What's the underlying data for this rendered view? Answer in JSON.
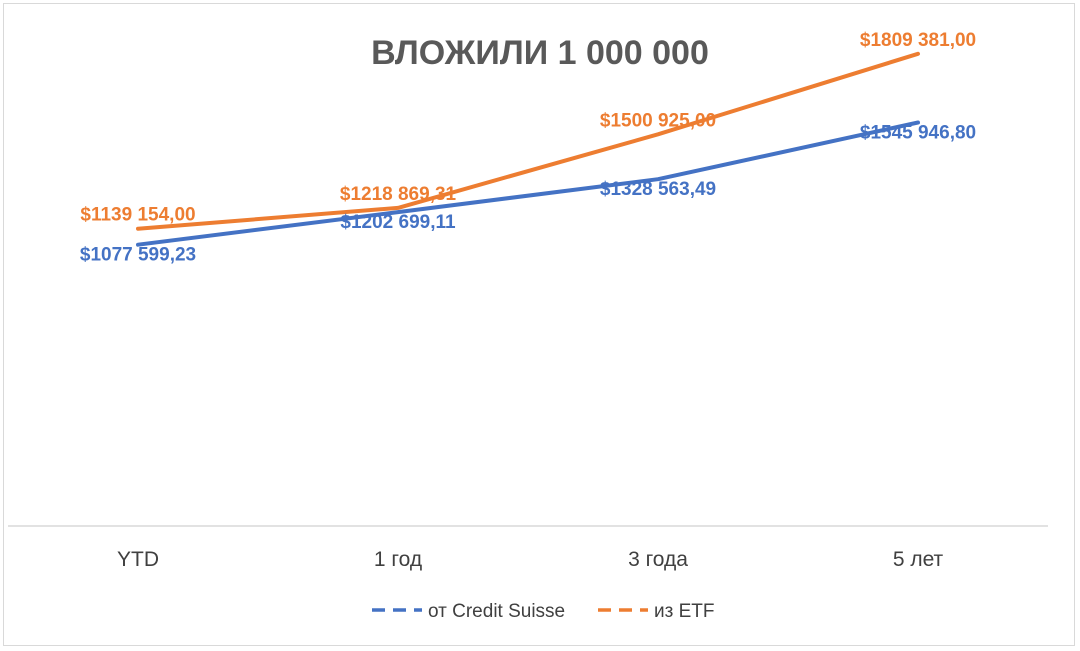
{
  "chart_data": {
    "type": "line",
    "title": "ВЛОЖИЛИ 1 000 000",
    "xlabel": "",
    "ylabel": "",
    "categories": [
      "YTD",
      "1 год",
      "3 года",
      "5 лет"
    ],
    "ylim": [
      0,
      2000000
    ],
    "grid": false,
    "legend_position": "bottom",
    "series": [
      {
        "name": "от Credit Suisse",
        "color": "#4472c4",
        "values": [
          1077599.23,
          1202699.11,
          1328563.49,
          1545946.8
        ],
        "labels": [
          "$1077 599,23",
          "$1202 699,11",
          "$1328 563,49",
          "$1545 946,80"
        ]
      },
      {
        "name": "из ETF",
        "color": "#ed7d31",
        "values": [
          1139154.0,
          1218869.31,
          1500925.0,
          1809381.0
        ],
        "labels": [
          "$1139 154,00",
          "$1218 869,31",
          "$1500 925,00",
          "$1809 381,00"
        ]
      }
    ]
  }
}
